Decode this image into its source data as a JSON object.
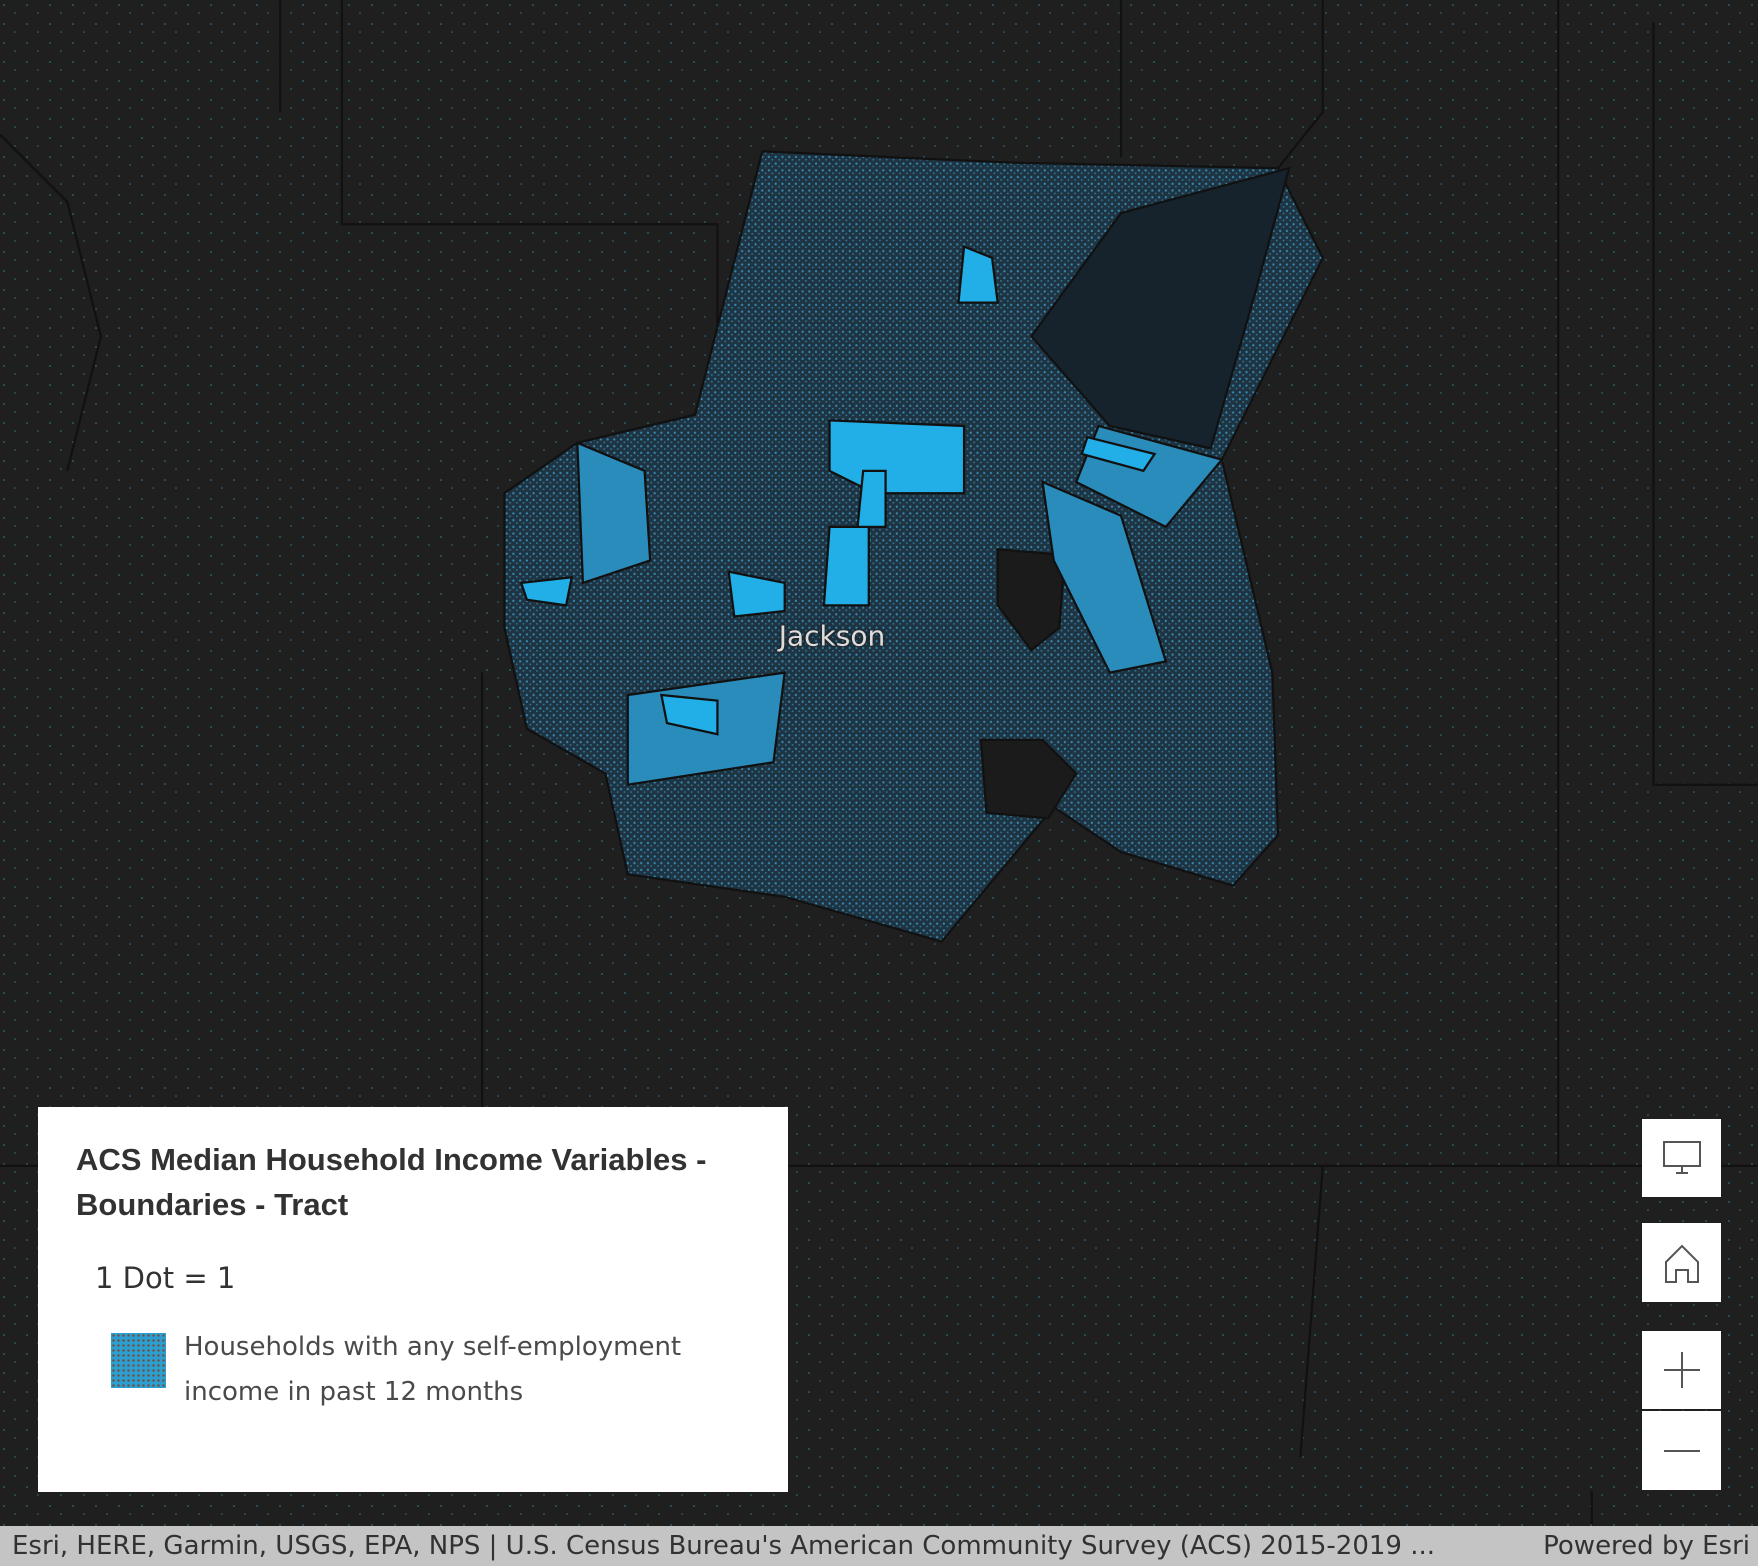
{
  "map": {
    "place_label": "Jackson"
  },
  "legend": {
    "title": "ACS Median Household Income Variables - Boundaries - Tract",
    "dot_value": "1 Dot = 1",
    "items": [
      {
        "label": "Households with any self-employment income in past 12 months"
      }
    ]
  },
  "attribution": {
    "sources": "Esri, HERE, Garmin, USGS, EPA, NPS | U.S. Census Bureau's American Community Survey (ACS) 2015-2019 ...",
    "powered_by": "Powered by Esri"
  }
}
